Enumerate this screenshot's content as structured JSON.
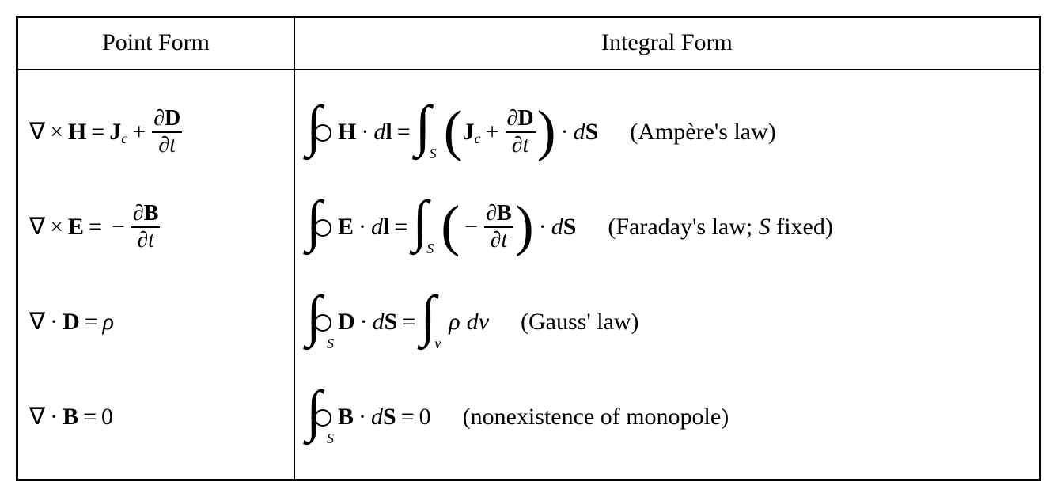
{
  "table": {
    "type": "table",
    "border_color": "#000000",
    "background_color": "#ffffff",
    "font_family": "Times New Roman",
    "header_fontsize": 30,
    "body_fontsize": 30,
    "columns": [
      "Point Form",
      "Integral Form"
    ],
    "rows": [
      {
        "point_form": "∇ × H = J_c + ∂D/∂t",
        "integral_form": "∮ H · dl = ∫_S (J_c + ∂D/∂t) · dS",
        "law_label": "(Ampère's law)"
      },
      {
        "point_form": "∇ × E = − ∂B/∂t",
        "integral_form": "∮ E · dl = ∫_S (− ∂B/∂t) · dS",
        "law_label": "(Faraday's law; S fixed)"
      },
      {
        "point_form": "∇ · D = ρ",
        "integral_form": "∮_S D · dS = ∫_v ρ dv",
        "law_label": "(Gauss' law)"
      },
      {
        "point_form": "∇ · B = 0",
        "integral_form": "∮_S B · dS = 0",
        "law_label": "(nonexistence of monopole)"
      }
    ],
    "symbols": {
      "nabla": "∇",
      "cross": "×",
      "dot_op": "·",
      "equals": "=",
      "plus": "+",
      "minus": "−",
      "partial": "∂",
      "zero": "0",
      "rho": "ρ",
      "H": "H",
      "E": "E",
      "D": "D",
      "B": "B",
      "J": "J",
      "S": "S",
      "l": "l",
      "t": "t",
      "v": "v",
      "c": "c",
      "d": "d",
      "dv": "dv",
      "S_italic": "S"
    }
  }
}
